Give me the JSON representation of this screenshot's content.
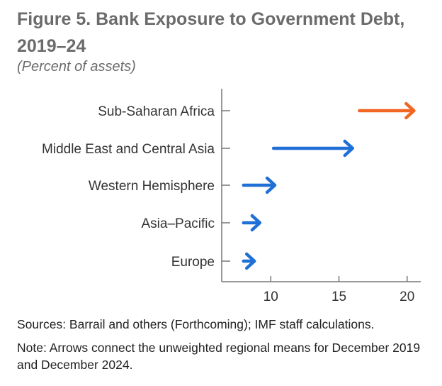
{
  "header": {
    "title": "Figure 5. Bank Exposure to Government Debt, 2019–24",
    "subtitle": "(Percent of assets)"
  },
  "footer": {
    "sources": "Sources: Barrail and others (Forthcoming); IMF staff calculations.",
    "note": "Note: Arrows connect the unweighted regional means for December 2019 and December 2024."
  },
  "colors": {
    "highlight": "#f26522",
    "arrow": "#1f6fd6",
    "axis": "#777777"
  },
  "chart_data": {
    "type": "arrow",
    "title": "Figure 5. Bank Exposure to Government Debt, 2019–24",
    "subtitle": "(Percent of assets)",
    "xlim": [
      6.4,
      21
    ],
    "xticks": [
      10,
      15,
      20
    ],
    "xlabel": "",
    "ylabel": "",
    "grid": false,
    "legend": "none",
    "categories": [
      "Sub-Saharan Africa",
      "Middle East and Central Asia",
      "Western Hemisphere",
      "Asia–Pacific",
      "Europe"
    ],
    "series": [
      {
        "start": [
          16.5,
          10.2,
          8.0,
          8.0,
          8.0
        ],
        "end": [
          20.5,
          16.0,
          10.3,
          9.2,
          8.8
        ],
        "highlight": [
          true,
          false,
          false,
          false,
          false
        ]
      }
    ]
  }
}
